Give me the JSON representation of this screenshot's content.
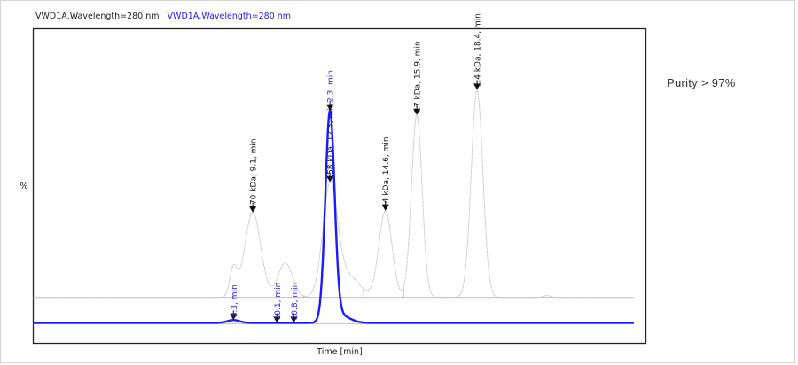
{
  "legend": [
    {
      "label": "VWD1A,Wavelength=280 nm",
      "color": "#222222"
    },
    {
      "label": "VWD1A,Wavelength=280 nm",
      "color": "#1a1aff"
    }
  ],
  "purity_label": "Purity > 97%",
  "chart_data": {
    "type": "line",
    "title": "",
    "xlabel": "Time [min]",
    "ylabel": "%",
    "xlim": [
      0,
      25.4
    ],
    "ylim": [
      0,
      100
    ],
    "grid": false,
    "legend_position": "top-left",
    "series": [
      {
        "name": "VWD1A,Wavelength=280 nm (standards)",
        "color": "#c8c8c8",
        "baseline": 14.6,
        "t_end": 24.9,
        "peaks": [
          {
            "t": 8.3,
            "h": 9,
            "sigma": 0.15
          },
          {
            "t": 9.1,
            "h": 27,
            "sigma": 0.33
          },
          {
            "t": 10.45,
            "h": 11,
            "sigma": 0.3
          },
          {
            "t": 12.3,
            "h": 34,
            "sigma": 0.3
          },
          {
            "t": 13.0,
            "h": 7,
            "sigma": 0.5
          },
          {
            "t": 14.6,
            "h": 27.5,
            "sigma": 0.27
          },
          {
            "t": 15.9,
            "h": 58,
            "sigma": 0.22
          },
          {
            "t": 18.4,
            "h": 66,
            "sigma": 0.24
          },
          {
            "t": 21.3,
            "h": 0.6,
            "sigma": 0.15
          }
        ],
        "annotations": [
          {
            "t": 9.1,
            "text": "670 kDa, 9.1, min"
          },
          {
            "t": 12.3,
            "text": "158 kDa, 12.3, min"
          },
          {
            "t": 14.6,
            "text": "44 kDa, 14.6, min"
          },
          {
            "t": 15.9,
            "text": "17 kDa, 15.9, min"
          },
          {
            "t": 18.4,
            "text": "1.4 kDa, 18.4, min"
          }
        ],
        "integration_marks": [
          11.2,
          13.7,
          15.35
        ]
      },
      {
        "name": "VWD1A,Wavelength=280 nm (sample)",
        "color": "#1a1aff",
        "baseline": 6.5,
        "t_end": 24.9,
        "peaks": [
          {
            "t": 8.3,
            "h": 0.9,
            "sigma": 0.25
          },
          {
            "t": 12.3,
            "h": 66,
            "sigma": 0.19
          },
          {
            "t": 12.7,
            "h": 2.5,
            "sigma": 0.4
          }
        ],
        "annotations": [
          {
            "t": 8.3,
            "text": "8.3, min"
          },
          {
            "t": 10.1,
            "text": "10.1, min"
          },
          {
            "t": 10.8,
            "text": "10.8, min"
          },
          {
            "t": 12.3,
            "text": "12.3, min"
          }
        ]
      }
    ]
  }
}
